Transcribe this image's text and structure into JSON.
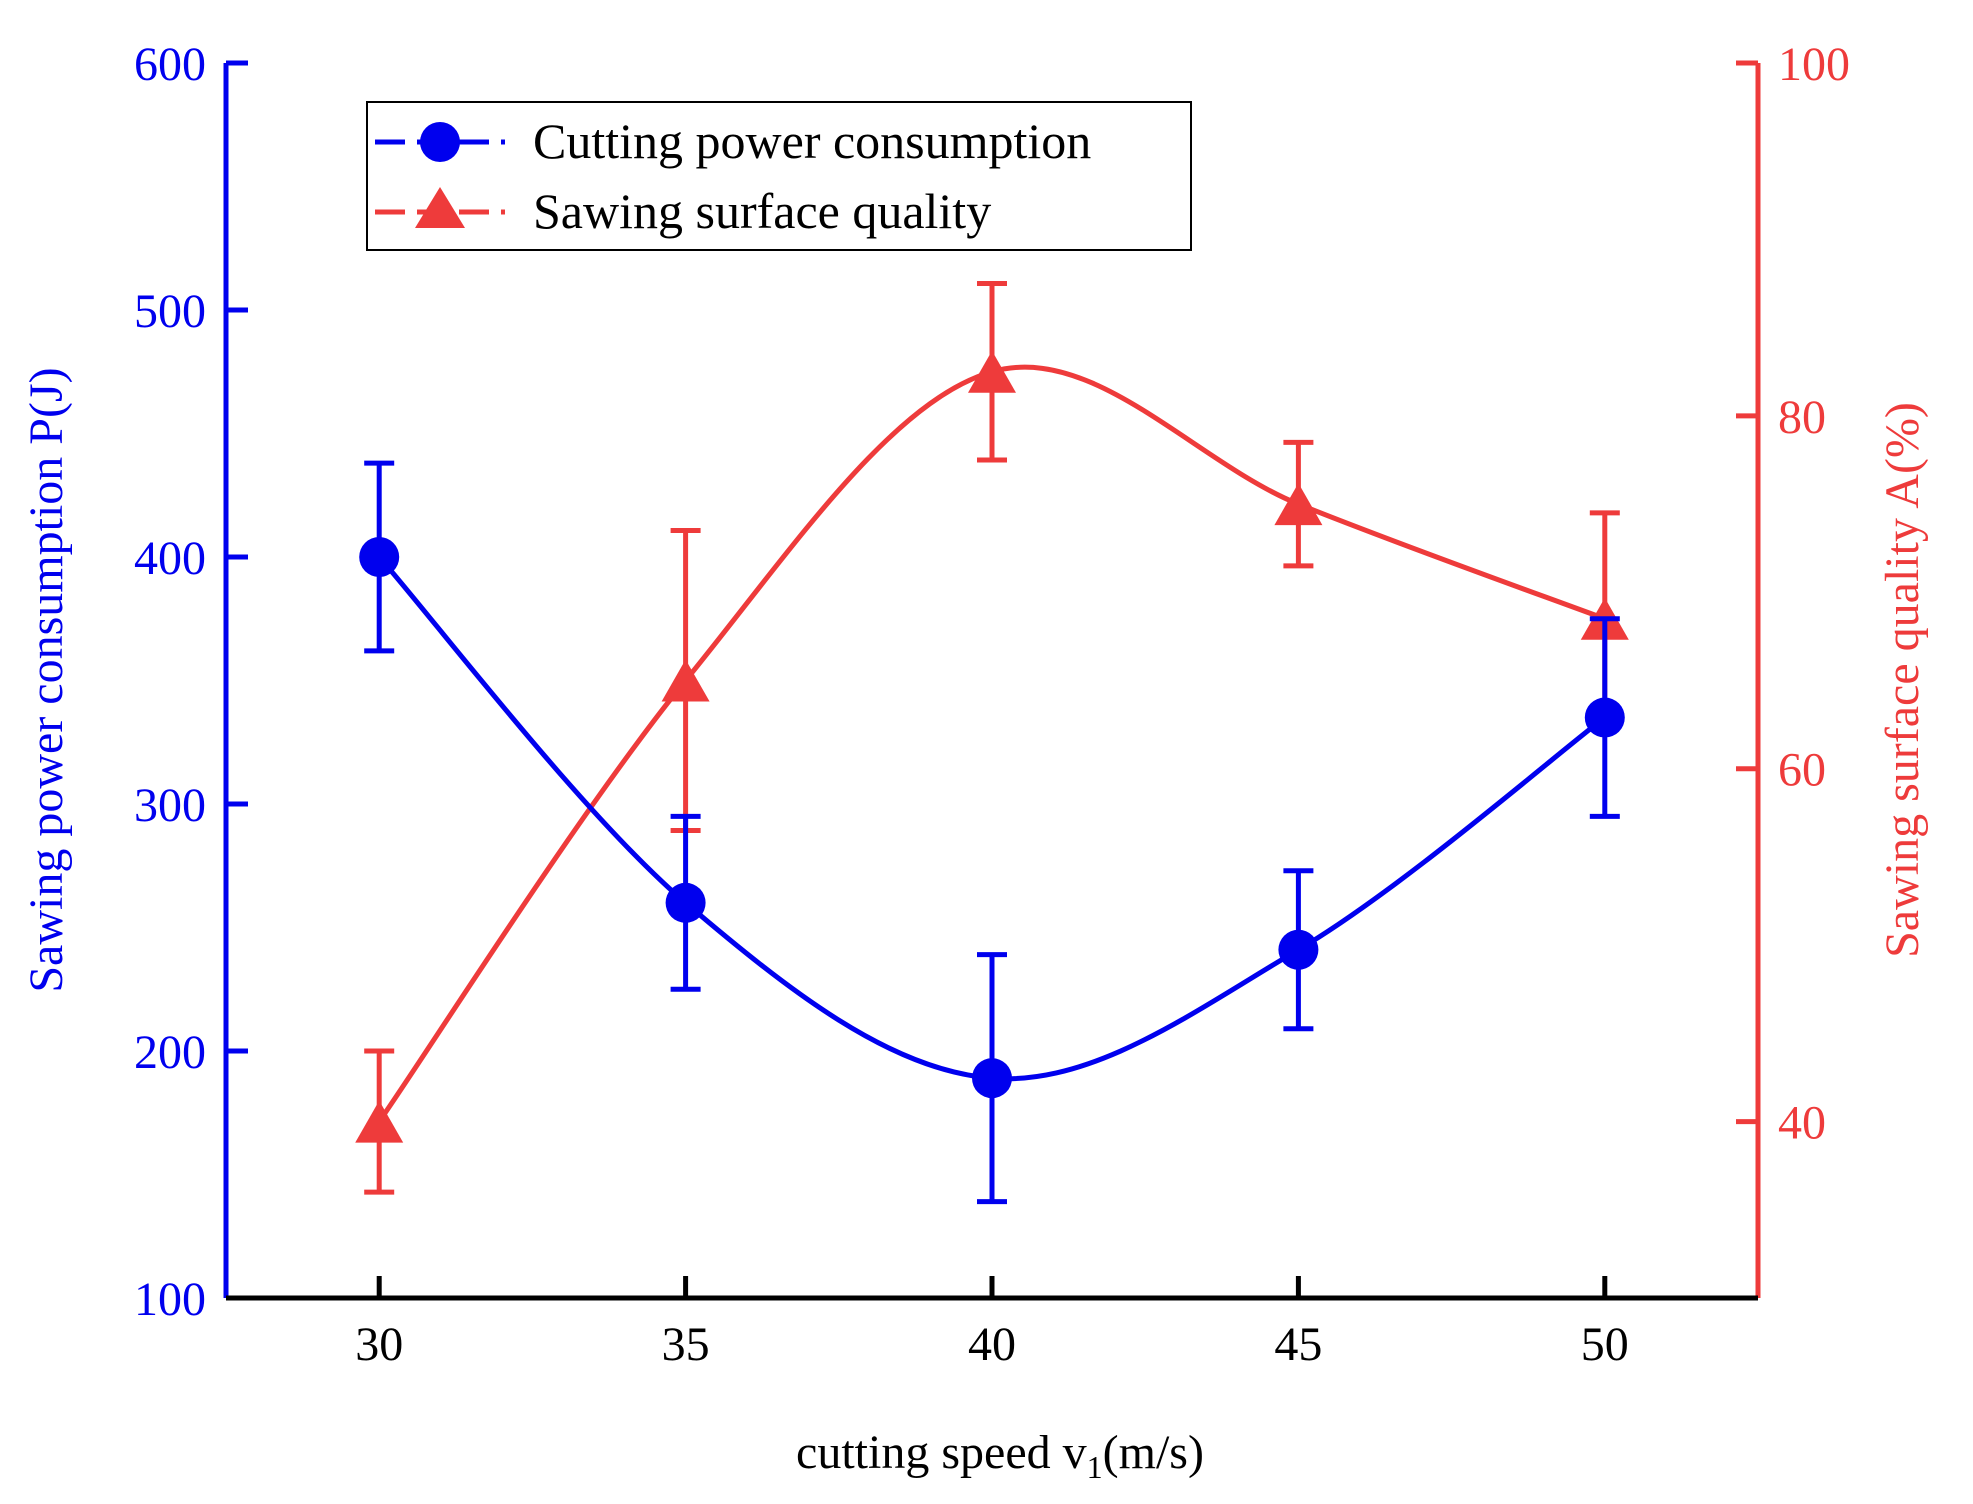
{
  "chart_data": {
    "type": "line",
    "x": [
      30,
      35,
      40,
      45,
      50
    ],
    "xlabel": "cutting speed v",
    "xlabel_subscript": "1",
    "xlabel_suffix": "(m/s)",
    "xlim": [
      27.5,
      52.5
    ],
    "xticks": [
      30,
      35,
      40,
      45,
      50
    ],
    "y_left": {
      "label": "Sawing power consumption P(J)",
      "lim": [
        100,
        600
      ],
      "ticks": [
        100,
        200,
        300,
        400,
        500,
        600
      ],
      "color": "#0000ee"
    },
    "y_right": {
      "label": "Sawing surface quality A(%)",
      "lim": [
        30,
        100
      ],
      "ticks": [
        40,
        60,
        80,
        100
      ],
      "color": "#ee3b3b"
    },
    "series": [
      {
        "name": "Cutting power consumption",
        "axis": "left",
        "marker": "circle",
        "color": "#0000ee",
        "values": [
          400,
          260,
          189,
          241,
          335
        ],
        "error": [
          38,
          35,
          50,
          32,
          40
        ]
      },
      {
        "name": "Sawing surface quality",
        "axis": "right",
        "marker": "triangle",
        "color": "#ee3b3b",
        "values": [
          40,
          65,
          82.5,
          75,
          68.5
        ],
        "error": [
          4,
          8.5,
          5,
          3.5,
          6
        ]
      }
    ],
    "legend": "top-left",
    "grid": false
  }
}
